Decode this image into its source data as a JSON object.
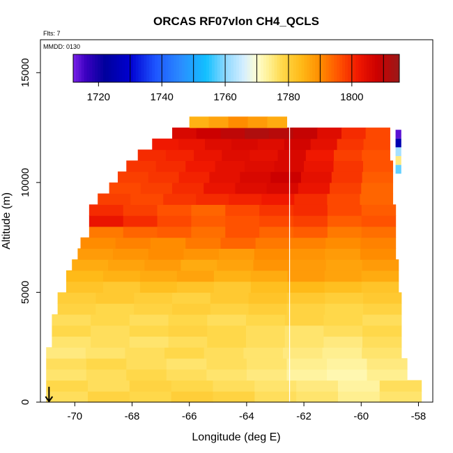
{
  "chart_data": {
    "type": "heatmap",
    "title": "ORCAS RF07vlon CH4_QCLS",
    "xlabel": "Longitude (deg E)",
    "ylabel": "Altitude (m)",
    "xlim": [
      -71.2,
      -57.5
    ],
    "ylim": [
      0,
      16500
    ],
    "xticks": [
      -70,
      -68,
      -66,
      -64,
      -62,
      -60,
      -58
    ],
    "xtick_labels": [
      "-70",
      "-68",
      "-66",
      "-64",
      "-62",
      "-60",
      "-58"
    ],
    "yticks": [
      0,
      5000,
      10000,
      15000
    ],
    "ytick_labels": [
      "0",
      "5000",
      "10000",
      "15000"
    ],
    "annotations": {
      "flts": "Flts: 7",
      "mmdd": "MMDD: 0130"
    },
    "colorbar": {
      "range": [
        1712,
        1815
      ],
      "tick_values": [
        1720,
        1740,
        1760,
        1780,
        1800
      ],
      "tick_labels": [
        "1720",
        "1740",
        "1760",
        "1780",
        "1800"
      ],
      "segment_bounds": [
        1730,
        1740,
        1750,
        1760,
        1770,
        1780,
        1790,
        1800,
        1810
      ]
    },
    "colorscale": [
      [
        1712,
        "#7a22e8"
      ],
      [
        1716,
        "#3a00c0"
      ],
      [
        1722,
        "#00009c"
      ],
      [
        1730,
        "#0000d0"
      ],
      [
        1738,
        "#1e55ff"
      ],
      [
        1746,
        "#2a8cff"
      ],
      [
        1754,
        "#12c0ff"
      ],
      [
        1760,
        "#8cd8ff"
      ],
      [
        1766,
        "#d6efff"
      ],
      [
        1770,
        "#ffffd0"
      ],
      [
        1774,
        "#ffef90"
      ],
      [
        1778,
        "#ffd84a"
      ],
      [
        1784,
        "#ffba18"
      ],
      [
        1790,
        "#ff8c00"
      ],
      [
        1796,
        "#ff5200"
      ],
      [
        1802,
        "#f01800"
      ],
      [
        1808,
        "#cc0000"
      ],
      [
        1815,
        "#9a1818"
      ]
    ],
    "bands": [
      {
        "alt": [
          0,
          500
        ],
        "lon": [
          -71.0,
          -57.9
        ],
        "values": [
          1777,
          1779,
          1778,
          1780,
          1779,
          1777,
          1776,
          1774,
          1776
        ]
      },
      {
        "alt": [
          500,
          1000
        ],
        "lon": [
          -71.0,
          -57.9
        ],
        "values": [
          1778,
          1777,
          1779,
          1778,
          1777,
          1776,
          1775,
          1773,
          1777
        ]
      },
      {
        "alt": [
          1000,
          1500
        ],
        "lon": [
          -71.0,
          -58.4
        ],
        "values": [
          1776,
          1777,
          1778,
          1777,
          1776,
          1775,
          1773,
          1772,
          1774
        ]
      },
      {
        "alt": [
          1500,
          2000
        ],
        "lon": [
          -71.0,
          -58.4
        ],
        "values": [
          1777,
          1778,
          1777,
          1776,
          1777,
          1776,
          1774,
          1773,
          1775
        ]
      },
      {
        "alt": [
          2000,
          2500
        ],
        "lon": [
          -71.0,
          -58.6
        ],
        "values": [
          1775,
          1776,
          1777,
          1778,
          1777,
          1776,
          1775,
          1774,
          1776
        ]
      },
      {
        "alt": [
          2500,
          3000
        ],
        "lon": [
          -70.8,
          -58.6
        ],
        "values": [
          1776,
          1777,
          1776,
          1777,
          1778,
          1777,
          1776,
          1775,
          1777
        ]
      },
      {
        "alt": [
          3000,
          3500
        ],
        "lon": [
          -70.8,
          -58.6
        ],
        "values": [
          1778,
          1777,
          1778,
          1779,
          1778,
          1777,
          1776,
          1777,
          1778
        ]
      },
      {
        "alt": [
          3500,
          4000
        ],
        "lon": [
          -70.8,
          -58.6
        ],
        "values": [
          1777,
          1778,
          1777,
          1778,
          1777,
          1778,
          1779,
          1778,
          1777
        ]
      },
      {
        "alt": [
          4000,
          4500
        ],
        "lon": [
          -70.6,
          -58.6
        ],
        "values": [
          1779,
          1778,
          1779,
          1780,
          1779,
          1780,
          1779,
          1778,
          1779
        ]
      },
      {
        "alt": [
          4500,
          5000
        ],
        "lon": [
          -70.6,
          -58.6
        ],
        "values": [
          1780,
          1781,
          1780,
          1779,
          1781,
          1782,
          1781,
          1780,
          1781
        ]
      },
      {
        "alt": [
          5000,
          5500
        ],
        "lon": [
          -70.3,
          -58.7
        ],
        "values": [
          1782,
          1781,
          1783,
          1782,
          1781,
          1783,
          1784,
          1783,
          1782
        ]
      },
      {
        "alt": [
          5500,
          6000
        ],
        "lon": [
          -70.3,
          -58.7
        ],
        "values": [
          1784,
          1785,
          1786,
          1787,
          1785,
          1786,
          1788,
          1787,
          1786
        ]
      },
      {
        "alt": [
          6000,
          6500
        ],
        "lon": [
          -70.1,
          -58.7
        ],
        "values": [
          1786,
          1787,
          1788,
          1786,
          1787,
          1789,
          1788,
          1787,
          1788
        ]
      },
      {
        "alt": [
          6500,
          7000
        ],
        "lon": [
          -69.9,
          -58.8
        ],
        "values": [
          1788,
          1789,
          1790,
          1789,
          1788,
          1790,
          1789,
          1788,
          1790
        ]
      },
      {
        "alt": [
          7000,
          7500
        ],
        "lon": [
          -69.8,
          -58.8
        ],
        "values": [
          1790,
          1791,
          1790,
          1792,
          1794,
          1792,
          1791,
          1790,
          1791
        ]
      },
      {
        "alt": [
          7500,
          8000
        ],
        "lon": [
          -69.5,
          -58.8
        ],
        "values": [
          1792,
          1794,
          1795,
          1793,
          1796,
          1794,
          1795,
          1792,
          1793
        ]
      },
      {
        "alt": [
          8000,
          8500
        ],
        "lon": [
          -69.5,
          -58.8
        ],
        "values": [
          1803,
          1800,
          1797,
          1795,
          1796,
          1797,
          1798,
          1795,
          1796
        ]
      },
      {
        "alt": [
          8500,
          9000
        ],
        "lon": [
          -69.5,
          -58.8
        ],
        "values": [
          1800,
          1798,
          1796,
          1794,
          1797,
          1799,
          1800,
          1797,
          1795
        ]
      },
      {
        "alt": [
          9000,
          9500
        ],
        "lon": [
          -69.2,
          -58.9
        ],
        "values": [
          1798,
          1797,
          1799,
          1800,
          1801,
          1802,
          1800,
          1797,
          1794
        ]
      },
      {
        "alt": [
          9500,
          10000
        ],
        "lon": [
          -68.8,
          -58.9
        ],
        "values": [
          1797,
          1798,
          1800,
          1803,
          1805,
          1806,
          1803,
          1798,
          1794
        ]
      },
      {
        "alt": [
          10000,
          10500
        ],
        "lon": [
          -68.5,
          -58.9
        ],
        "values": [
          1798,
          1799,
          1801,
          1804,
          1806,
          1808,
          1804,
          1799,
          1795
        ]
      },
      {
        "alt": [
          10500,
          11000
        ],
        "lon": [
          -68.2,
          -58.9
        ],
        "values": [
          1799,
          1800,
          1802,
          1804,
          1805,
          1806,
          1803,
          1799,
          1796
        ]
      },
      {
        "alt": [
          11000,
          11500
        ],
        "lon": [
          -67.8,
          -59.0
        ],
        "values": [
          1800,
          1801,
          1803,
          1805,
          1804,
          1806,
          1802,
          1798,
          1796
        ]
      },
      {
        "alt": [
          11500,
          12000
        ],
        "lon": [
          -67.3,
          -59.0
        ],
        "values": [
          1802,
          1803,
          1805,
          1806,
          1805,
          1807,
          1804,
          1799,
          1797
        ]
      },
      {
        "alt": [
          12000,
          12500
        ],
        "lon": [
          -66.6,
          -59.0
        ],
        "values": [
          1806,
          1808,
          1810,
          1812,
          1811,
          1809,
          1805,
          1800,
          1797
        ]
      },
      {
        "alt": [
          12500,
          13000
        ],
        "lon": [
          -66.0,
          -62.6
        ],
        "values": [
          1785,
          1787,
          1790,
          1788,
          1786
        ]
      }
    ],
    "edge_column": {
      "lon": [
        -58.8,
        -58.6
      ],
      "cells": [
        {
          "alt": [
            12000,
            12400
          ],
          "value": 1714
        },
        {
          "alt": [
            11600,
            12000
          ],
          "value": 1725
        },
        {
          "alt": [
            11200,
            11600
          ],
          "value": 1762
        },
        {
          "alt": [
            10800,
            11200
          ],
          "value": 1775
        },
        {
          "alt": [
            10400,
            10800
          ],
          "value": 1758
        }
      ]
    },
    "flight_track_lon": -62.5,
    "arrow": {
      "lon": -70.9,
      "alt_from": 700,
      "alt_to": 0
    }
  }
}
